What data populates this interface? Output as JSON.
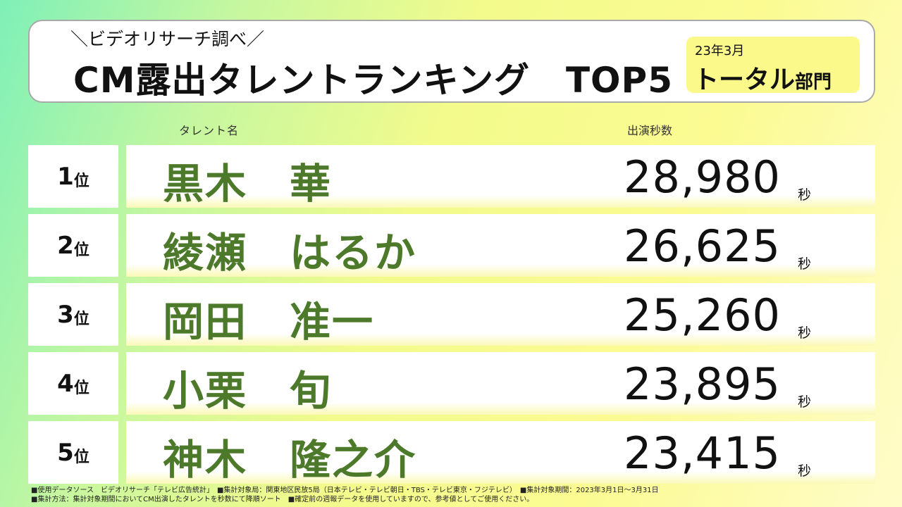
{
  "header": {
    "subtitle": "＼ビデオリサーチ調べ／",
    "title": "CM露出タレントランキング　TOP5",
    "period": "23年3月",
    "category_main": "トータル",
    "category_suffix": "部門"
  },
  "columns": {
    "talent": "タレント名",
    "seconds": "出演秒数"
  },
  "rank_suffix": "位",
  "seconds_unit": "秒",
  "rows": [
    {
      "rank": "1",
      "name": "黒木　華",
      "seconds": "28,980"
    },
    {
      "rank": "2",
      "name": "綾瀬　はるか",
      "seconds": "26,625"
    },
    {
      "rank": "3",
      "name": "岡田　准一",
      "seconds": "25,260"
    },
    {
      "rank": "4",
      "name": "小栗　旬",
      "seconds": "23,895"
    },
    {
      "rank": "5",
      "name": "神木　隆之介",
      "seconds": "23,415"
    }
  ],
  "footer": {
    "line1": "■使用データソース　ビデオリサーチ「テレビ広告統計」　■集計対象局：関東地区民放5局（日本テレビ・テレビ朝日・TBS・テレビ東京・フジテレビ）　■集計対象期間：2023年3月1日～3月31日",
    "line2": "■集計方法：集計対象期間においてCM出演したタレントを秒数にて降順ソート　■確定前の週報データを使用していますので、参考値としてご使用ください。"
  },
  "colors": {
    "name_green": "#4d7a2a",
    "category_yellow": "#fbf98a"
  }
}
